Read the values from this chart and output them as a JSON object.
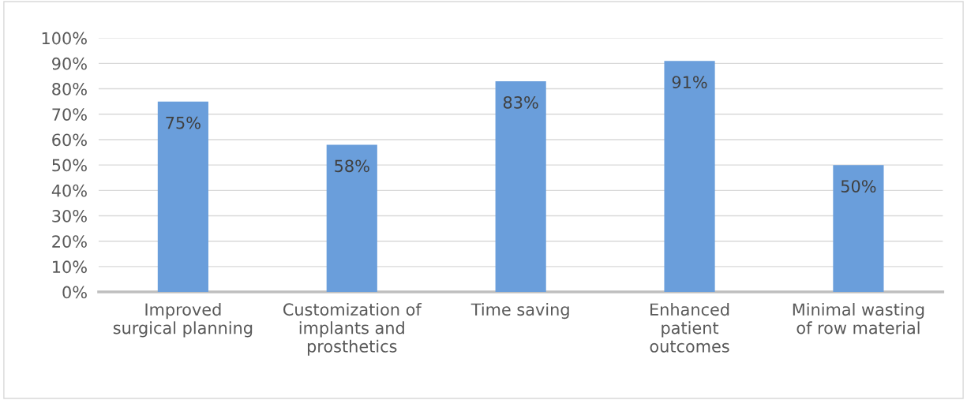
{
  "chart_data": {
    "type": "bar",
    "categories": [
      "Improved\nsurgical planning",
      "Customization of\nimplants and\nprosthetics",
      "Time saving",
      "Enhanced\npatient\noutcomes",
      "Minimal wasting\nof row material"
    ],
    "values": [
      75,
      58,
      83,
      91,
      50
    ],
    "value_labels": [
      "75%",
      "58%",
      "83%",
      "91%",
      "50%"
    ],
    "color": "#6a9edb",
    "ylim": [
      0,
      100
    ],
    "yticks": [
      {
        "value": 0,
        "label": "0%"
      },
      {
        "value": 10,
        "label": "10%"
      },
      {
        "value": 20,
        "label": "20%"
      },
      {
        "value": 30,
        "label": "30%"
      },
      {
        "value": 40,
        "label": "40%"
      },
      {
        "value": 50,
        "label": "50%"
      },
      {
        "value": 60,
        "label": "60%"
      },
      {
        "value": 70,
        "label": "70%"
      },
      {
        "value": 80,
        "label": "80%"
      },
      {
        "value": 90,
        "label": "90%"
      },
      {
        "value": 100,
        "label": "100%"
      }
    ],
    "grid": "y",
    "legend": false
  }
}
